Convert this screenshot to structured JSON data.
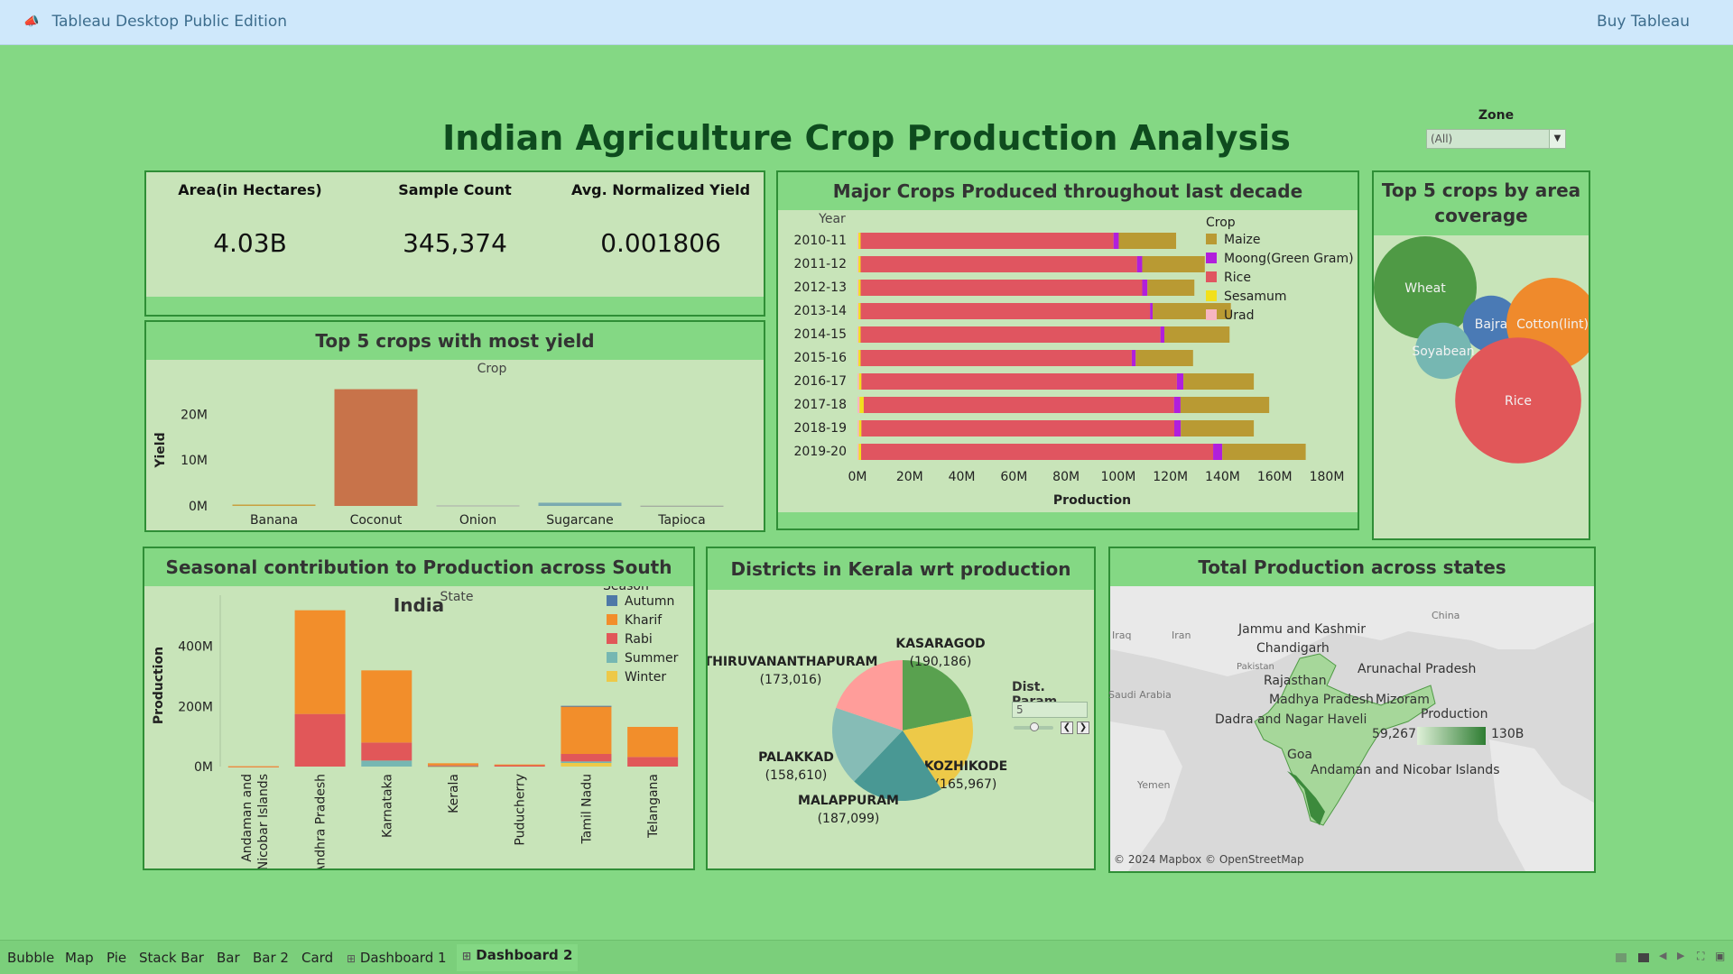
{
  "app": {
    "title": "Tableau Desktop Public Edition",
    "buy_label": "Buy Tableau"
  },
  "dashboard": {
    "title": "Indian Agriculture Crop Production Analysis",
    "zone_filter": {
      "label": "Zone",
      "value": "(All)"
    }
  },
  "kpis": [
    {
      "label": "Area(in Hectares)",
      "value": "4.03B"
    },
    {
      "label": "Sample Count",
      "value": "345,374"
    },
    {
      "label": "Avg. Normalized Yield",
      "value": "0.001806"
    }
  ],
  "yield_chart": {
    "title": "Top 5 crops with most yield",
    "header": "Crop",
    "ylabel": "Yield"
  },
  "decade_chart": {
    "title": "Major Crops Produced throughout last decade",
    "ycol_header": "Year",
    "xlabel": "Production",
    "legend_title": "Crop"
  },
  "bubble_chart": {
    "title": "Top 5 crops by area coverage"
  },
  "seasonal_chart": {
    "title": "Seasonal contribution to Production across South India",
    "header": "State",
    "ylabel": "Production",
    "legend_title": "Season"
  },
  "kerala_chart": {
    "title": "Districts in Kerala wrt  production",
    "param_label": "Dist. Param.",
    "param_value": "5"
  },
  "map_panel": {
    "title": "Total Production across states",
    "legend_title": "Production",
    "legend_min": "59,267",
    "legend_max": "130B",
    "credit": "© 2024 Mapbox © OpenStreetMap",
    "country_labels": [
      "Iraq",
      "Iran",
      "Pakistan",
      "China",
      "Saudi Arabia",
      "Yemen"
    ],
    "state_labels": [
      "Jammu and Kashmir",
      "Chandigarh",
      "Arunachal Pradesh",
      "Rajasthan",
      "Madhya Pradesh",
      "Mizoram",
      "Dadra and Nagar Haveli",
      "Goa",
      "Andaman and Nicobar Islands"
    ]
  },
  "tabs": [
    "Bubble",
    "Map",
    "Pie",
    "Stack Bar",
    "Bar",
    "Bar 2",
    "Card",
    "Dashboard 1",
    "Dashboard 2"
  ],
  "active_tab": "Dashboard 2",
  "chart_data": [
    {
      "type": "bar",
      "title": "Top 5 crops with most yield",
      "xlabel": "Crop",
      "ylabel": "Yield",
      "categories": [
        "Banana",
        "Coconut",
        "Onion",
        "Sugarcane",
        "Tapioca"
      ],
      "values": [
        0.3,
        25.5,
        0.1,
        0.7,
        0.05
      ],
      "value_unit": "M",
      "ticks": [
        "0M",
        "10M",
        "20M"
      ],
      "ylim": [
        0,
        26
      ],
      "colors": [
        "#c8a040",
        "#c8734a",
        "#aaaaaa",
        "#7aaab0",
        "#999999"
      ]
    },
    {
      "type": "bar",
      "orientation": "horizontal-stacked",
      "title": "Major Crops Produced throughout last decade",
      "xlabel": "Production",
      "ylabel": "Year",
      "categories": [
        "2010-11",
        "2011-12",
        "2012-13",
        "2013-14",
        "2014-15",
        "2015-16",
        "2016-17",
        "2017-18",
        "2018-19",
        "2019-20"
      ],
      "ticks": [
        "0M",
        "20M",
        "40M",
        "60M",
        "80M",
        "100M",
        "120M",
        "140M",
        "160M",
        "180M"
      ],
      "xlim": [
        0,
        180
      ],
      "value_unit": "M",
      "series": [
        {
          "name": "Urad",
          "color": "#f7b6c2",
          "values": [
            0.4,
            0.4,
            0.4,
            0.4,
            0.4,
            0.4,
            0.6,
            0.8,
            0.6,
            0.5
          ]
        },
        {
          "name": "Sesamum",
          "color": "#f2e01c",
          "values": [
            0.8,
            0.8,
            0.8,
            0.8,
            0.8,
            0.8,
            0.9,
            1.6,
            0.9,
            0.9
          ]
        },
        {
          "name": "Rice",
          "color": "#e05560",
          "values": [
            97,
            106,
            108,
            111,
            115,
            104,
            121,
            119,
            120,
            135
          ]
        },
        {
          "name": "Moong(Green Gram)",
          "color": "#b11fdc",
          "values": [
            2,
            2,
            2,
            1,
            1.5,
            1.5,
            2.5,
            2.5,
            2.5,
            3.5
          ]
        },
        {
          "name": "Maize",
          "color": "#b99a33",
          "values": [
            22,
            24,
            18,
            30,
            25,
            22,
            27,
            34,
            28,
            32
          ]
        }
      ],
      "legend_order": [
        "Maize",
        "Moong(Green Gram)",
        "Rice",
        "Sesamum",
        "Urad"
      ]
    },
    {
      "type": "scatter",
      "subtype": "bubble",
      "title": "Top 5 crops by area coverage",
      "series": [
        {
          "name": "Wheat",
          "size": 100,
          "color": "#4f9a45"
        },
        {
          "name": "Bajra",
          "size": 30,
          "color": "#4a7ab5"
        },
        {
          "name": "Cotton(lint)",
          "size": 80,
          "color": "#ef8a2c"
        },
        {
          "name": "Soyabean",
          "size": 30,
          "color": "#76b7b2"
        },
        {
          "name": "Rice",
          "size": 150,
          "color": "#e15759"
        }
      ]
    },
    {
      "type": "bar",
      "orientation": "vertical-stacked",
      "title": "Seasonal contribution to Production across South India",
      "xlabel": "State",
      "ylabel": "Production",
      "categories": [
        "Andaman and Nicobar Islands",
        "Andhra Pradesh",
        "Karnataka",
        "Kerala",
        "Puducherry",
        "Tamil Nadu",
        "Telangana"
      ],
      "ticks": [
        "0M",
        "200M",
        "400M"
      ],
      "ylim": [
        0,
        540
      ],
      "value_unit": "M",
      "series": [
        {
          "name": "Autumn",
          "color": "#4e79a7",
          "values": [
            0,
            0,
            0,
            0,
            0,
            2,
            0
          ]
        },
        {
          "name": "Kharif",
          "color": "#f28e2b",
          "values": [
            0.5,
            345,
            240,
            7,
            2,
            158,
            100
          ]
        },
        {
          "name": "Rabi",
          "color": "#e15759",
          "values": [
            0.5,
            175,
            60,
            2,
            5,
            25,
            32
          ]
        },
        {
          "name": "Summer",
          "color": "#76b7b2",
          "values": [
            0,
            0,
            20,
            1,
            0,
            5,
            0
          ]
        },
        {
          "name": "Winter",
          "color": "#edc948",
          "values": [
            0,
            0,
            0,
            1,
            0,
            12,
            0
          ]
        }
      ]
    },
    {
      "type": "pie",
      "title": "Districts in Kerala wrt  production",
      "series": [
        {
          "name": "KASARAGOD",
          "label": "(190,186)",
          "value": 190186,
          "color": "#59a14f"
        },
        {
          "name": "KOZHIKODE",
          "label": "(165,967)",
          "value": 165967,
          "color": "#edc948"
        },
        {
          "name": "MALAPPURAM",
          "label": "(187,099)",
          "value": 187099,
          "color": "#499894"
        },
        {
          "name": "PALAKKAD",
          "label": "(158,610)",
          "value": 158610,
          "color": "#86bcb6"
        },
        {
          "name": "THIRUVANANTHAPURAM",
          "label": "(173,016)",
          "value": 173016,
          "color": "#ff9d9a"
        }
      ]
    }
  ]
}
